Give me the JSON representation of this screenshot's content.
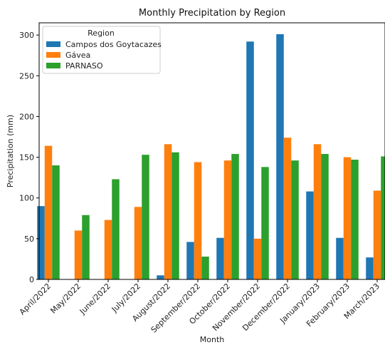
{
  "chart_data": {
    "type": "bar",
    "title": "Monthly Precipitation by Region",
    "xlabel": "Month",
    "ylabel": "Precipitation (mm)",
    "ylim": [
      0,
      315
    ],
    "yticks": [
      0,
      50,
      100,
      150,
      200,
      250,
      300
    ],
    "categories": [
      "April/2022",
      "May/2022",
      "June/2022",
      "July/2022",
      "August/2022",
      "September/2022",
      "October/2022",
      "November/2022",
      "December/2022",
      "January/2023",
      "February/2023",
      "March/2023"
    ],
    "legend": {
      "title": "Region",
      "position": "top-left"
    },
    "grid": false,
    "series": [
      {
        "name": "Campos dos Goytacazes",
        "color": "#1f77b4",
        "values": [
          90,
          null,
          null,
          null,
          5,
          46,
          51,
          292,
          301,
          108,
          51,
          27
        ]
      },
      {
        "name": "Gávea",
        "color": "#ff7f0e",
        "values": [
          164,
          60,
          73,
          89,
          166,
          144,
          146,
          50,
          174,
          166,
          150,
          109
        ]
      },
      {
        "name": "PARNASO",
        "color": "#2ca02c",
        "values": [
          140,
          79,
          123,
          153,
          156,
          28,
          154,
          138,
          146,
          154,
          147,
          151
        ]
      }
    ]
  }
}
